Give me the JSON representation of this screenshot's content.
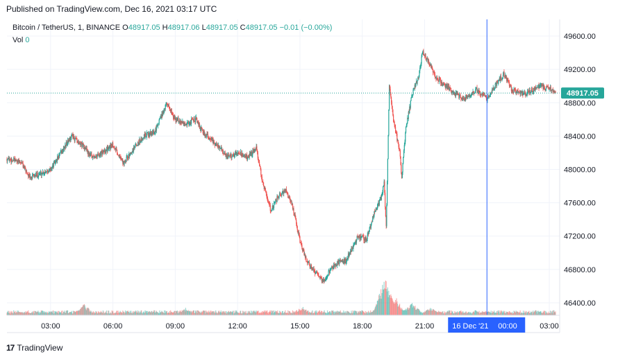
{
  "header": {
    "published": "Published on TradingView.com, Dec 16, 2021 03:17 UTC"
  },
  "legend": {
    "symbol": "Bitcoin / TetherUS, 1, BINANCE",
    "o_label": "O",
    "o_value": "48917.05",
    "h_label": "H",
    "h_value": "48917.06",
    "l_label": "L",
    "l_value": "48917.05",
    "c_label": "C",
    "c_value": "48917.05",
    "change": "−0.01 (−0.00%)",
    "vol_label": "Vol",
    "vol_value": "0"
  },
  "price_badge": "48917.05",
  "crosshair_label": {
    "date": "16 Dec '21",
    "time": "00:00"
  },
  "footer": {
    "brand": "TradingView"
  },
  "colors": {
    "up": "#26a69a",
    "down": "#ef5350",
    "crosshair": "#2962ff",
    "badge": "#26a69a"
  },
  "chart_data": {
    "type": "candlestick",
    "symbol": "BTCUSDT",
    "interval": "1 minute",
    "yticks": [
      49600,
      49200,
      48800,
      48400,
      48000,
      47600,
      47200,
      46800,
      46400
    ],
    "ylim": [
      46250,
      49800
    ],
    "xticks": [
      "03:00",
      "06:00",
      "09:00",
      "12:00",
      "15:00",
      "18:00",
      "21:00",
      "03:00"
    ],
    "xtick_hours": [
      3,
      6,
      9,
      12,
      15,
      18,
      21,
      27
    ],
    "xlim_hours": [
      0.9,
      27.5
    ],
    "current_price": 48917.05,
    "crosshair_hour": 24.0,
    "price_path": [
      [
        0.9,
        48130
      ],
      [
        1.6,
        48080
      ],
      [
        2.0,
        47900
      ],
      [
        2.6,
        47960
      ],
      [
        3.0,
        48000
      ],
      [
        3.5,
        48200
      ],
      [
        4.0,
        48400
      ],
      [
        4.5,
        48300
      ],
      [
        5.0,
        48150
      ],
      [
        5.5,
        48200
      ],
      [
        6.0,
        48300
      ],
      [
        6.5,
        48080
      ],
      [
        7.0,
        48250
      ],
      [
        7.5,
        48400
      ],
      [
        8.0,
        48450
      ],
      [
        8.6,
        48800
      ],
      [
        9.0,
        48600
      ],
      [
        9.5,
        48550
      ],
      [
        10.0,
        48600
      ],
      [
        10.3,
        48450
      ],
      [
        10.8,
        48350
      ],
      [
        11.3,
        48200
      ],
      [
        11.6,
        48150
      ],
      [
        12.0,
        48200
      ],
      [
        12.5,
        48150
      ],
      [
        12.9,
        48250
      ],
      [
        13.2,
        47850
      ],
      [
        13.6,
        47500
      ],
      [
        14.0,
        47700
      ],
      [
        14.3,
        47750
      ],
      [
        14.6,
        47600
      ],
      [
        15.0,
        47150
      ],
      [
        15.3,
        46900
      ],
      [
        15.8,
        46750
      ],
      [
        16.1,
        46650
      ],
      [
        16.5,
        46800
      ],
      [
        16.9,
        46900
      ],
      [
        17.2,
        46900
      ],
      [
        17.5,
        47050
      ],
      [
        17.8,
        47200
      ],
      [
        18.2,
        47150
      ],
      [
        18.6,
        47500
      ],
      [
        18.9,
        47650
      ],
      [
        19.05,
        47850
      ],
      [
        19.15,
        47300
      ],
      [
        19.3,
        49000
      ],
      [
        19.5,
        48600
      ],
      [
        19.8,
        48200
      ],
      [
        19.9,
        47900
      ],
      [
        20.1,
        48500
      ],
      [
        20.4,
        48900
      ],
      [
        20.7,
        49100
      ],
      [
        20.9,
        49400
      ],
      [
        21.2,
        49300
      ],
      [
        21.5,
        49100
      ],
      [
        22.0,
        49000
      ],
      [
        22.5,
        48900
      ],
      [
        23.0,
        48850
      ],
      [
        23.5,
        48950
      ],
      [
        24.0,
        48850
      ],
      [
        24.4,
        49000
      ],
      [
        24.8,
        49150
      ],
      [
        25.2,
        48950
      ],
      [
        25.7,
        48900
      ],
      [
        26.2,
        48950
      ],
      [
        26.6,
        49000
      ],
      [
        27.0,
        48980
      ],
      [
        27.3,
        48917
      ]
    ],
    "volume_spikes": [
      [
        4.6,
        0.28
      ],
      [
        9.5,
        0.18
      ],
      [
        15.1,
        0.22
      ],
      [
        18.9,
        0.38
      ],
      [
        19.1,
        1.0
      ],
      [
        19.3,
        0.62
      ],
      [
        19.6,
        0.45
      ],
      [
        20.4,
        0.33
      ],
      [
        21.3,
        0.2
      ],
      [
        24.0,
        0.12
      ]
    ]
  }
}
